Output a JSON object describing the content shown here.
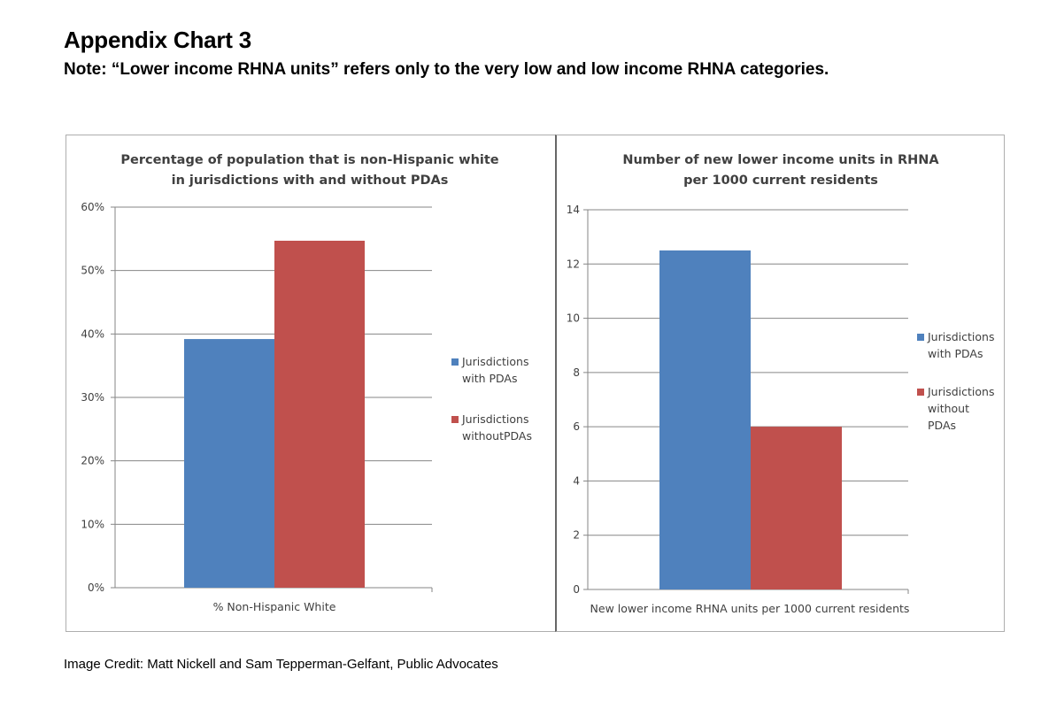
{
  "page": {
    "heading": "Appendix Chart 3",
    "note": "Note: “Lower income RHNA units” refers only to the very low and low income RHNA categories.",
    "credit": "Image Credit: Matt Nickell and Sam Tepperman-Gelfant, Public Advocates"
  },
  "colors": {
    "with_pdas": "#4f81bd",
    "without_pdas": "#c0504d",
    "gridline": "#868686",
    "axis_text": "#404040"
  },
  "chart_data": [
    {
      "type": "bar",
      "title": [
        "Percentage of population that is non-Hispanic white",
        "in jurisdictions with and without PDAs"
      ],
      "categories": [
        "% Non-Hispanic White"
      ],
      "xlabel": "",
      "ylabel": "",
      "ylim": [
        0,
        0.6
      ],
      "yticks": [
        0,
        0.1,
        0.2,
        0.3,
        0.4,
        0.5,
        0.6
      ],
      "ytick_labels": [
        "0%",
        "10%",
        "20%",
        "30%",
        "40%",
        "50%",
        "60%"
      ],
      "grid": true,
      "legend_position": "right",
      "series": [
        {
          "name": [
            "Jurisdictions",
            "with PDAs"
          ],
          "values": [
            0.392
          ],
          "color": "#4f81bd"
        },
        {
          "name": [
            "Jurisdictions",
            "withoutPDAs"
          ],
          "values": [
            0.547
          ],
          "color": "#c0504d"
        }
      ]
    },
    {
      "type": "bar",
      "title": [
        "Number of new lower income units in RHNA",
        "per 1000 current residents"
      ],
      "categories": [
        "New lower income RHNA units per 1000 current residents"
      ],
      "xlabel": "",
      "ylabel": "",
      "ylim": [
        0,
        14
      ],
      "yticks": [
        0,
        2,
        4,
        6,
        8,
        10,
        12,
        14
      ],
      "ytick_labels": [
        "0",
        "2",
        "4",
        "6",
        "8",
        "10",
        "12",
        "14"
      ],
      "grid": true,
      "legend_position": "right",
      "series": [
        {
          "name": [
            "Jurisdictions",
            "with PDAs"
          ],
          "values": [
            12.5
          ],
          "color": "#4f81bd"
        },
        {
          "name": [
            "Jurisdictions",
            "without",
            "PDAs"
          ],
          "values": [
            6.0
          ],
          "color": "#c0504d"
        }
      ]
    }
  ]
}
